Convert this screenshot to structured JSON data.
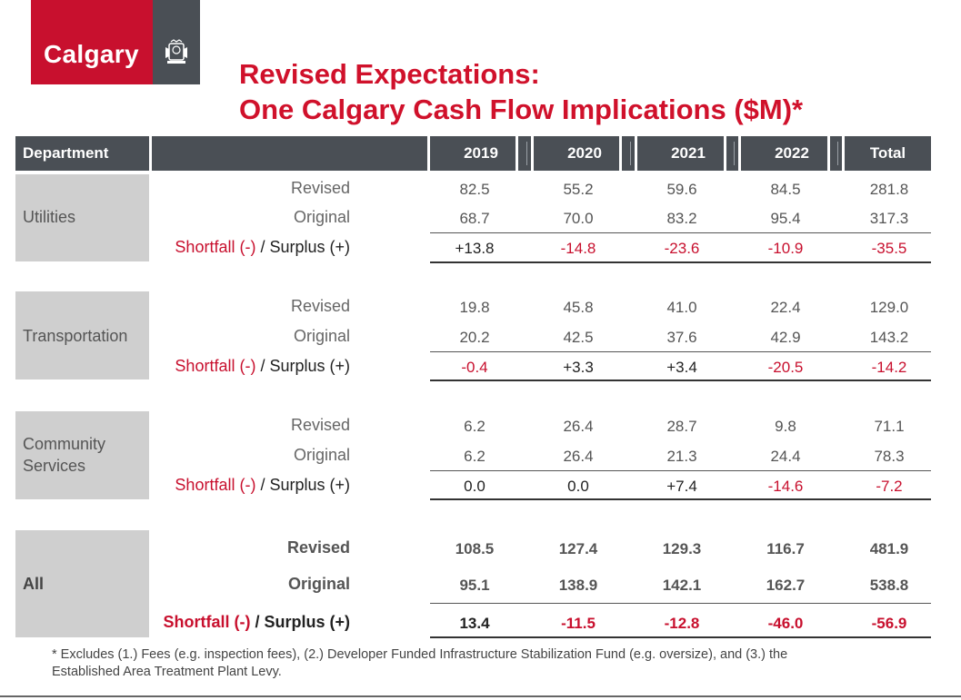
{
  "logo": {
    "text": "Calgary",
    "crest_icon": "city-crest-icon"
  },
  "title": {
    "line1": "Revised Expectations:",
    "line2": "One Calgary Cash Flow Implications ($M)*"
  },
  "header": {
    "department": "Department",
    "years": [
      "2019",
      "2020",
      "2021",
      "2022"
    ],
    "total": "Total"
  },
  "row_labels": {
    "revised": "Revised",
    "original": "Original",
    "shortfall_part1": "Shortfall (-)",
    "shortfall_sep": " / ",
    "shortfall_part2": "Surplus (+)"
  },
  "sections": [
    {
      "department": "Utilities",
      "revised": [
        "82.5",
        "55.2",
        "59.6",
        "84.5",
        "281.8"
      ],
      "original": [
        "68.7",
        "70.0",
        "83.2",
        "95.4",
        "317.3"
      ],
      "shortfall": [
        "+13.8",
        "-14.8",
        "-23.6",
        "-10.9",
        "-35.5"
      ]
    },
    {
      "department": "Transportation",
      "revised": [
        "19.8",
        "45.8",
        "41.0",
        "22.4",
        "129.0"
      ],
      "original": [
        "20.2",
        "42.5",
        "37.6",
        "42.9",
        "143.2"
      ],
      "shortfall": [
        "-0.4",
        "+3.3",
        "+3.4",
        "-20.5",
        "-14.2"
      ]
    },
    {
      "department_line1": "Community",
      "department_line2": "Services",
      "revised": [
        "6.2",
        "26.4",
        "28.7",
        "9.8",
        "71.1"
      ],
      "original": [
        "6.2",
        "26.4",
        "21.3",
        "24.4",
        "78.3"
      ],
      "shortfall": [
        "0.0",
        "0.0",
        "+7.4",
        "-14.6",
        "-7.2"
      ]
    },
    {
      "department": "All",
      "revised": [
        "108.5",
        "127.4",
        "129.3",
        "116.7",
        "481.9"
      ],
      "original": [
        "95.1",
        "138.9",
        "142.1",
        "162.7",
        "538.8"
      ],
      "shortfall": [
        "13.4",
        "-11.5",
        "-12.8",
        "-46.0",
        "-56.9"
      ]
    }
  ],
  "footnote": {
    "line1": "* Excludes (1.) Fees (e.g. inspection fees), (2.) Developer Funded Infrastructure Stabilization Fund (e.g. oversize), and (3.) the",
    "line2": "Established Area Treatment Plant Levy."
  },
  "colors": {
    "brand_red": "#c8102e",
    "header_gray": "#4a4f55",
    "dept_gray": "#cfcfcf"
  }
}
